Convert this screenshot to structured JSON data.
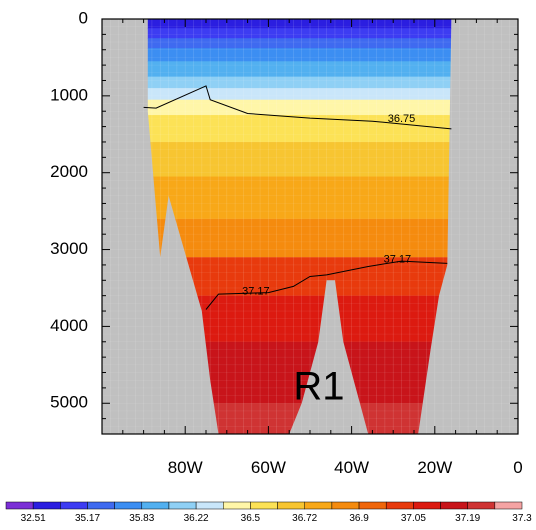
{
  "chart_data": {
    "type": "heatmap",
    "title": "",
    "xlabel": "",
    "ylabel": "",
    "x_ticks": [
      "80W",
      "60W",
      "40W",
      "20W",
      "0"
    ],
    "y_ticks": [
      "0",
      "1000",
      "2000",
      "3000",
      "4000",
      "5000"
    ],
    "xlim": [
      -100,
      0
    ],
    "ylim": [
      5400,
      0
    ],
    "y_axis_inverted": true,
    "land_color": "#c0c0c0",
    "colorbar": {
      "orientation": "horizontal",
      "placement": "bottom",
      "labels": [
        "32.51",
        "35.17",
        "35.83",
        "36.22",
        "36.5",
        "36.72",
        "36.9",
        "37.05",
        "37.19",
        "37.3"
      ],
      "colors": [
        "#7b2fd6",
        "#2b1ee0",
        "#3d3cf2",
        "#3f6af0",
        "#3c8ef2",
        "#52b0f0",
        "#8fd0f5",
        "#c9e6fa",
        "#fff6a8",
        "#fce256",
        "#f7c531",
        "#f8a818",
        "#f58b0e",
        "#f0660a",
        "#e83a0d",
        "#dc1a10",
        "#c8141a",
        "#cf3333",
        "#f5a3a3"
      ]
    },
    "depth_color_layers": [
      {
        "depth_from": 0,
        "depth_to": 120,
        "color": "#2b1ee0"
      },
      {
        "depth_from": 120,
        "depth_to": 250,
        "color": "#3d3cf2"
      },
      {
        "depth_from": 250,
        "depth_to": 380,
        "color": "#3f6af0"
      },
      {
        "depth_from": 380,
        "depth_to": 550,
        "color": "#3c8ef2"
      },
      {
        "depth_from": 550,
        "depth_to": 750,
        "color": "#52b0f0"
      },
      {
        "depth_from": 750,
        "depth_to": 900,
        "color": "#8fd0f5"
      },
      {
        "depth_from": 900,
        "depth_to": 1050,
        "color": "#c9e6fa"
      },
      {
        "depth_from": 1050,
        "depth_to": 1250,
        "color": "#fff6a8"
      },
      {
        "depth_from": 1250,
        "depth_to": 1600,
        "color": "#fce256"
      },
      {
        "depth_from": 1600,
        "depth_to": 2050,
        "color": "#f7c531"
      },
      {
        "depth_from": 2050,
        "depth_to": 2600,
        "color": "#f8a818"
      },
      {
        "depth_from": 2600,
        "depth_to": 3100,
        "color": "#f58b0e"
      },
      {
        "depth_from": 3100,
        "depth_to": 3600,
        "color": "#e83a0d"
      },
      {
        "depth_from": 3600,
        "depth_to": 4200,
        "color": "#dc1a10"
      },
      {
        "depth_from": 4200,
        "depth_to": 5000,
        "color": "#c8141a"
      },
      {
        "depth_from": 5000,
        "depth_to": 5400,
        "color": "#cf3333"
      }
    ],
    "basin_bottom": [
      {
        "lon": -89,
        "depth": 1200
      },
      {
        "lon": -86,
        "depth": 3100
      },
      {
        "lon": -84,
        "depth": 2300
      },
      {
        "lon": -76,
        "depth": 3800
      },
      {
        "lon": -74,
        "depth": 4700
      },
      {
        "lon": -72,
        "depth": 5400
      },
      {
        "lon": -55,
        "depth": 5400
      },
      {
        "lon": -52,
        "depth": 5000
      },
      {
        "lon": -48,
        "depth": 4200
      },
      {
        "lon": -46,
        "depth": 3400
      },
      {
        "lon": -44,
        "depth": 3400
      },
      {
        "lon": -42,
        "depth": 4200
      },
      {
        "lon": -38,
        "depth": 5000
      },
      {
        "lon": -36,
        "depth": 5400
      },
      {
        "lon": -24,
        "depth": 5400
      },
      {
        "lon": -21,
        "depth": 4300
      },
      {
        "lon": -19,
        "depth": 3600
      },
      {
        "lon": -17,
        "depth": 3200
      },
      {
        "lon": -16,
        "depth": 0
      }
    ],
    "contours": [
      {
        "value": "36.75",
        "points": [
          {
            "lon": -90,
            "depth": 1150
          },
          {
            "lon": -87,
            "depth": 1160
          },
          {
            "lon": -75,
            "depth": 870
          },
          {
            "lon": -74,
            "depth": 1050
          },
          {
            "lon": -65,
            "depth": 1230
          },
          {
            "lon": -50,
            "depth": 1290
          },
          {
            "lon": -35,
            "depth": 1330
          },
          {
            "lon": -16,
            "depth": 1430
          }
        ]
      },
      {
        "value": "37.17",
        "points": [
          {
            "lon": -75,
            "depth": 3780
          },
          {
            "lon": -72,
            "depth": 3580
          },
          {
            "lon": -60,
            "depth": 3560
          },
          {
            "lon": -54,
            "depth": 3480
          },
          {
            "lon": -50,
            "depth": 3350
          },
          {
            "lon": -46,
            "depth": 3330
          },
          {
            "lon": -36,
            "depth": 3220
          },
          {
            "lon": -28,
            "depth": 3150
          },
          {
            "lon": -17,
            "depth": 3180
          }
        ]
      }
    ],
    "annotations": [
      {
        "text": "R1",
        "lon": -54,
        "depth": 4950
      }
    ]
  }
}
